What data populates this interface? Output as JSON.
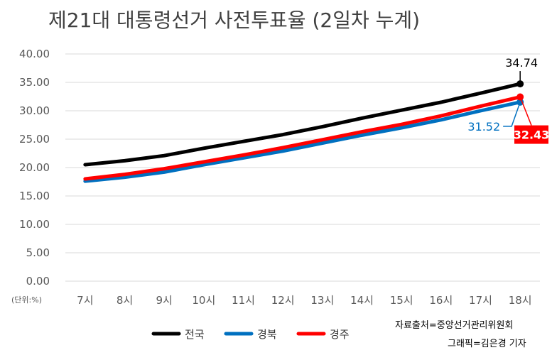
{
  "chart_data": {
    "type": "line",
    "title": "제21대 대통령선거 사전투표율 (2일차 누계)",
    "unit_label": "(단위:%)",
    "categories": [
      "7시",
      "8시",
      "9시",
      "10시",
      "11시",
      "12시",
      "13시",
      "14시",
      "15시",
      "16시",
      "17시",
      "18시"
    ],
    "ylim": [
      0,
      40
    ],
    "yticks": [
      "0.00",
      "5.00",
      "10.00",
      "15.00",
      "20.00",
      "25.00",
      "30.00",
      "35.00",
      "40.00"
    ],
    "grid": true,
    "legend_position": "bottom",
    "series": [
      {
        "name": "전국",
        "color": "#000000",
        "values": [
          20.5,
          21.2,
          22.1,
          23.4,
          24.6,
          25.8,
          27.2,
          28.7,
          30.1,
          31.5,
          33.1,
          34.74
        ],
        "end_label": "34.74"
      },
      {
        "name": "경북",
        "color": "#0070C0",
        "values": [
          17.6,
          18.3,
          19.2,
          20.5,
          21.7,
          22.9,
          24.3,
          25.7,
          27.0,
          28.4,
          30.0,
          31.52
        ],
        "end_label": "31.52"
      },
      {
        "name": "경주",
        "color": "#FF0000",
        "values": [
          18.0,
          18.8,
          19.8,
          21.0,
          22.2,
          23.5,
          24.9,
          26.3,
          27.6,
          29.1,
          30.8,
          32.43
        ],
        "end_label": "32.43"
      }
    ],
    "credits": [
      "자료출처=중앙선거관리위원회",
      "그래픽=김은경 기자"
    ]
  }
}
